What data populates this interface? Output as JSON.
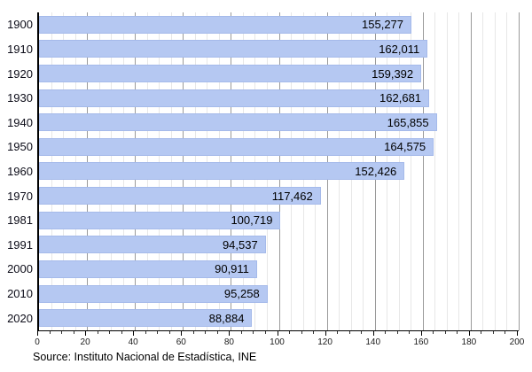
{
  "chart_data": {
    "type": "bar",
    "orientation": "horizontal",
    "title": "",
    "xlabel": "",
    "ylabel": "",
    "legend": "none",
    "grid": "vertical; minor every 5, major every 20",
    "categories": [
      "1900",
      "1910",
      "1920",
      "1930",
      "1940",
      "1950",
      "1960",
      "1970",
      "1981",
      "1991",
      "2000",
      "2010",
      "2020"
    ],
    "values": [
      155277,
      162011,
      159392,
      162681,
      165855,
      164575,
      152426,
      117462,
      100719,
      94537,
      90911,
      95258,
      88884
    ],
    "value_labels": [
      "155,277",
      "162,011",
      "159,392",
      "162,681",
      "165,855",
      "164,575",
      "152,426",
      "117,462",
      "100,719",
      "94,537",
      "90,911",
      "95,258",
      "88,884"
    ],
    "x_axis": {
      "min": 0,
      "max": 200,
      "unit_scale": 1000,
      "minor_tick": 5,
      "major_tick": 20,
      "tick_labels": [
        "0",
        "20",
        "40",
        "60",
        "80",
        "100",
        "120",
        "140",
        "160",
        "180",
        "200"
      ]
    }
  },
  "source_note": "Source: Instituto Nacional de Estadística, INE",
  "colors": {
    "bar_fill": "#b5c8f2",
    "bar_border": "#a5baea",
    "grid_minor": "#e7e7e7",
    "grid_major": "#9a9a9a",
    "axis": "#000000",
    "text": "#000000"
  }
}
